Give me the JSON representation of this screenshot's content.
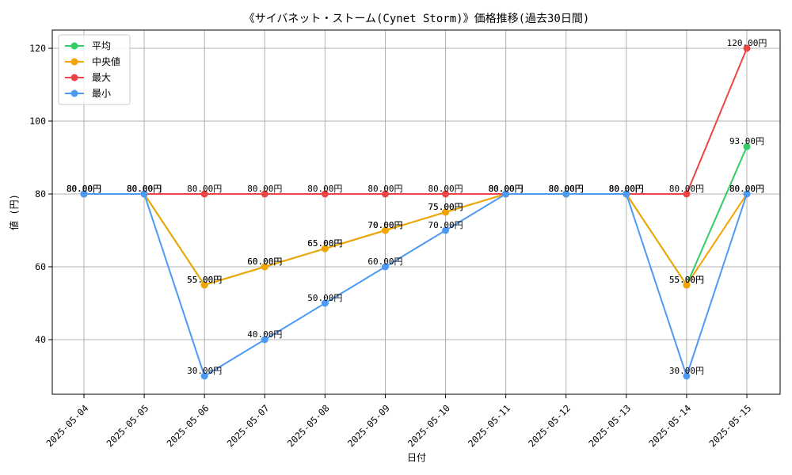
{
  "chart_data": {
    "type": "line",
    "title": "《サイバネット・ストーム(Cynet Storm)》価格推移(過去30日間)",
    "xlabel": "日付",
    "ylabel": "値 (円)",
    "categories": [
      "2025-05-04",
      "2025-05-05",
      "2025-05-06",
      "2025-05-07",
      "2025-05-08",
      "2025-05-09",
      "2025-05-10",
      "2025-05-11",
      "2025-05-12",
      "2025-05-13",
      "2025-05-14",
      "2025-05-15"
    ],
    "ylim": [
      25,
      125
    ],
    "yticks": [
      40,
      60,
      80,
      100,
      120
    ],
    "grid": true,
    "legend_position": "upper-left",
    "value_suffix": "円",
    "series": [
      {
        "name": "平均",
        "color": "#33cc66",
        "values": [
          80,
          80,
          55,
          60,
          65,
          70,
          75,
          80,
          80,
          80,
          55,
          93
        ]
      },
      {
        "name": "中央値",
        "color": "#f5a300",
        "values": [
          80,
          80,
          55,
          60,
          65,
          70,
          75,
          80,
          80,
          80,
          55,
          80
        ]
      },
      {
        "name": "最大",
        "color": "#ef4444",
        "values": [
          80,
          80,
          80,
          80,
          80,
          80,
          80,
          80,
          80,
          80,
          80,
          120
        ]
      },
      {
        "name": "最小",
        "color": "#4d9af5",
        "values": [
          80,
          80,
          30,
          40,
          50,
          60,
          70,
          80,
          80,
          80,
          30,
          80
        ]
      }
    ]
  }
}
